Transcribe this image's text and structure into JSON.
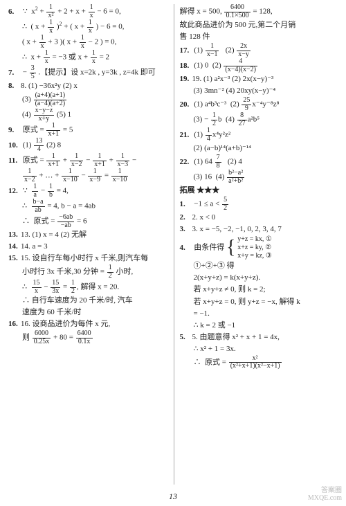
{
  "page_number": "13",
  "watermark_top": "答案圈",
  "watermark_bottom": "MXQE.com",
  "left": {
    "l1a": "6. ∵  x² + ",
    "l1b": " + 2 + x + ",
    "l1c": " − 6 = 0,",
    "l2a": "∴  ( x + ",
    "l2b": " )² + ( x + ",
    "l2c": " ) − 6 = 0,",
    "l3a": "( x + ",
    "l3b": " + 3 )( x + ",
    "l3c": " − 2 ) = 0,",
    "l4a": "∴  x + ",
    "l4b": " = −3 或 x + ",
    "l4c": " = 2",
    "l5a": "7. − ",
    "l5b": ".【提示】设 x=2k , y=3k , z=4k 即可",
    "l6": "8. (1) −36x²y   (2) x",
    "l7": "(3) ",
    "l8": "(4) ",
    "l8b": "   (5) 1",
    "l9a": "9. 原式 = ",
    "l9b": " = 5",
    "l10a": "10. (1) ",
    "l10b": "   (2) 8",
    "l11a": "11. 原式 = ",
    "l11b": " + ",
    "l11c": " − ",
    "l11d": " + ",
    "l11e": " − ",
    "l12a": "",
    "l12b": " + … + ",
    "l12c": " − ",
    "l12d": " = ",
    "l13a": "12. ∵  ",
    "l13b": " − ",
    "l13c": " = 4,",
    "l14a": "∴  ",
    "l14b": " = 4, b − a = 4ab",
    "l15a": "∴  原式 = ",
    "l15b": " = 6",
    "l16": "13. (1) x = 4   (2) 无解",
    "l17": "14. a = 3",
    "l18": "15. 设自行车每小时行 x 千米,则汽车每",
    "l19a": "小时行 3x 千米,30 分钟 = ",
    "l19b": " 小时,",
    "l20a": "∴  ",
    "l20b": " − ",
    "l20c": " = ",
    "l20d": ", 解得 x = 20.",
    "l21": "∴  自行车速度为 20 千米/时, 汽车",
    "l22": "速度为 60 千米/时",
    "l23": "16. 设商品进价为每件 x 元,",
    "l24a": "则 ",
    "l24b": " + 80 = ",
    "fr": {
      "one_x2_t": "1",
      "one_x2_b": "x²",
      "one_x_t": "1",
      "one_x_b": "x",
      "three_five_t": "3",
      "three_five_b": "5",
      "f73_t": "(a+4)(a+1)",
      "f73_b": "(a−4)(a+2)",
      "f74_t": "x−y−z",
      "f74_b": "x+y",
      "f9_t": "1",
      "f9_b": "x+1",
      "f101_t": "13",
      "f101_b": "4",
      "f11p1_t": "1",
      "f11p1_b": "x+1",
      "f11p2_t": "1",
      "f11p2_b": "x−2",
      "f11p3_t": "1",
      "f11p3_b": "x+1",
      "f11p4_t": "1",
      "f11p4_b": "x−3",
      "f11p5_t": "1",
      "f11p5_b": "x−2",
      "f11p6_t": "1",
      "f11p6_b": "x−10",
      "f11p7_t": "1",
      "f11p7_b": "x−9",
      "f11p8_t": "1",
      "f11p8_b": "x−10",
      "f12a_t": "1",
      "f12a_b": "a",
      "f12b_t": "1",
      "f12b_b": "b",
      "f12c_t": "b−a",
      "f12c_b": "ab",
      "f12d_t": "−6ab",
      "f12d_b": "−ab",
      "f15h_t": "1",
      "f15h_b": "2",
      "f15l_t": "15",
      "f15l_b": "x",
      "f15r_t": "15",
      "f15r_b": "3x",
      "f16l_t": "6000",
      "f16l_b": "0.25x",
      "f16r_t": "6400",
      "f16r_b": "0.1x"
    }
  },
  "right": {
    "l1a": "解得 x = 500, ",
    "l1b": " = 128,",
    "l2": "故此商品进价为 500 元,第二个月销",
    "l3": "售 128 件",
    "l4a": "17. (1) ",
    "l4b": "   (2) ",
    "l5a": "18. (1) 0   (2) ",
    "l6": "19. (1) a²x⁻³   (2) 2x(x−y)⁻³",
    "l7": "(3) 3mn⁻²   (4) 20xy(x−y)⁻⁴",
    "l8a": "20. (1) a⁴b³c⁻³   (2) ",
    "l8b": "x⁻⁴y⁻⁸z⁸",
    "l9a": "(3) − ",
    "l9b": "b   (4) ",
    "l9c": "a²b⁵",
    "l10a": "21. (1) ",
    "l10b": "x⁴y²z²",
    "l11": "(2) (a−b)¹⁴(a+b)⁻¹⁴",
    "l12a": "22. (1) 64 ",
    "l12b": "   (2) 4",
    "l13a": "(3) 16   (4) ",
    "l14": "拓展 ★★★",
    "l15a": "1. −1 ≤ a < ",
    "l16": "2. x < 0",
    "l17": "3. x = −5, −2, −1, 0, 2, 3, 4, 7",
    "l18a": "4. 由条件得 ",
    "sysA": "y+z = kx, ①",
    "sysB": "x+z = ky, ②",
    "sysC": "x+y = kz, ③",
    "l19": "①+②+③ 得",
    "l20": "2(x+y+z) = k(x+y+z).",
    "l21": "若 x+y+z ≠ 0, 则 k = 2;",
    "l22": "若 x+y+z = 0, 则 y+z = −x, 解得 k",
    "l23": "= −1.",
    "l24": "∴  k = 2 或 −1",
    "l25": "5. 由题意得 x² + x + 1 = 4x,",
    "l26": "∴ x² + 1 = 3x.",
    "l27a": "∴  原式 = ",
    "fr": {
      "r1_t": "6400",
      "r1_b": "0.1×500",
      "r171_t": "1",
      "r171_b": "x−1",
      "r172_t": "2x",
      "r172_b": "x−y",
      "r18_t": "4",
      "r18_b": "(x−4)(x−2)",
      "r202_t": "25",
      "r202_b": "9",
      "r203_t": "1",
      "r203_b": "2",
      "r204_t": "8",
      "r204_b": "27",
      "r211_t": "1",
      "r211_b": "4",
      "r221_t": "7",
      "r221_b": "8",
      "r224_t": "b²−a²",
      "r224_b": "a²+b²",
      "r_t1_t": "5",
      "r_t1_b": "2",
      "r5f_t": "x²",
      "r5f_b": "(x²+x+1)(x²−x+1)"
    }
  }
}
